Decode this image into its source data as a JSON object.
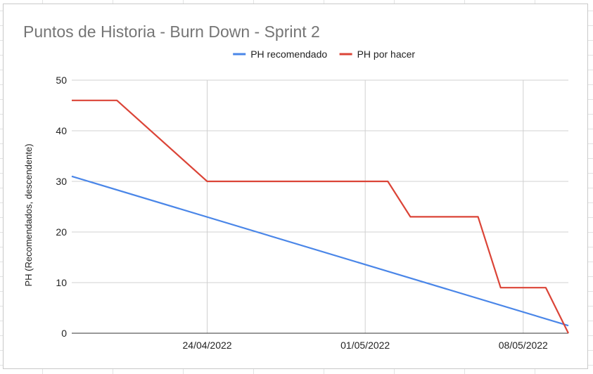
{
  "colors": {
    "recomendado": "#4a86e8",
    "por_hacer": "#db4437",
    "grid": "#d0d0d0",
    "axis": "#333333"
  },
  "chart_data": {
    "type": "line",
    "title": "Puntos de Historia - Burn Down - Sprint 2",
    "xlabel": "",
    "ylabel": "PH (Recomendados, descendente)",
    "x_type": "date",
    "xlim": [
      "2022-04-18",
      "2022-05-10"
    ],
    "ylim": [
      0,
      50
    ],
    "yticks": [
      0,
      10,
      20,
      30,
      40,
      50
    ],
    "xticks": [
      {
        "date": "2022-04-24",
        "label": "24/04/2022"
      },
      {
        "date": "2022-05-01",
        "label": "01/05/2022"
      },
      {
        "date": "2022-05-08",
        "label": "08/05/2022"
      }
    ],
    "grid": true,
    "legend_position": "top",
    "series": [
      {
        "name": "PH recomendado",
        "color_key": "recomendado",
        "points": [
          {
            "x": "2022-04-18",
            "y": 31
          },
          {
            "x": "2022-05-10",
            "y": 1.5
          }
        ]
      },
      {
        "name": "PH por hacer",
        "color_key": "por_hacer",
        "points": [
          {
            "x": "2022-04-18",
            "y": 46
          },
          {
            "x": "2022-04-20",
            "y": 46
          },
          {
            "x": "2022-04-24",
            "y": 30
          },
          {
            "x": "2022-05-02",
            "y": 30
          },
          {
            "x": "2022-05-03",
            "y": 23
          },
          {
            "x": "2022-05-06",
            "y": 23
          },
          {
            "x": "2022-05-07",
            "y": 9
          },
          {
            "x": "2022-05-09",
            "y": 9
          },
          {
            "x": "2022-05-10",
            "y": 0
          }
        ]
      }
    ]
  }
}
